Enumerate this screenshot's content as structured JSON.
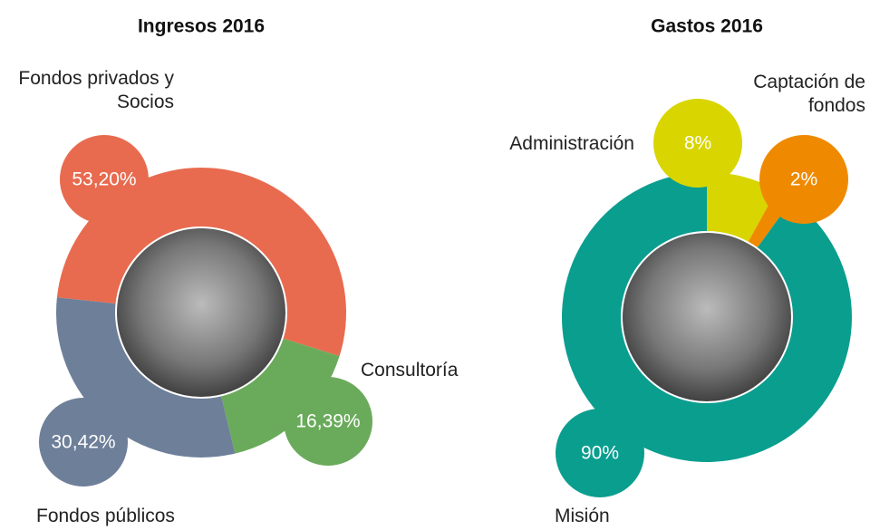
{
  "chart_data": [
    {
      "type": "donut",
      "title": "Ingresos 2016",
      "categories": [
        "Fondos privados y Socios",
        "Consultoría",
        "Fondos públicos"
      ],
      "values": [
        53.2,
        16.39,
        30.42
      ],
      "value_labels": [
        "53,20%",
        "16,39%",
        "30,42%"
      ],
      "colors": [
        "#e86b4f",
        "#6aab5b",
        "#6e7f99"
      ]
    },
    {
      "type": "donut",
      "title": "Gastos 2016",
      "categories": [
        "Administración",
        "Captación de fondos",
        "Misión"
      ],
      "values": [
        8,
        2,
        90
      ],
      "value_labels": [
        "8%",
        "2%",
        "90%"
      ],
      "colors": [
        "#d8d500",
        "#ef8a00",
        "#0a9e8f"
      ]
    }
  ]
}
